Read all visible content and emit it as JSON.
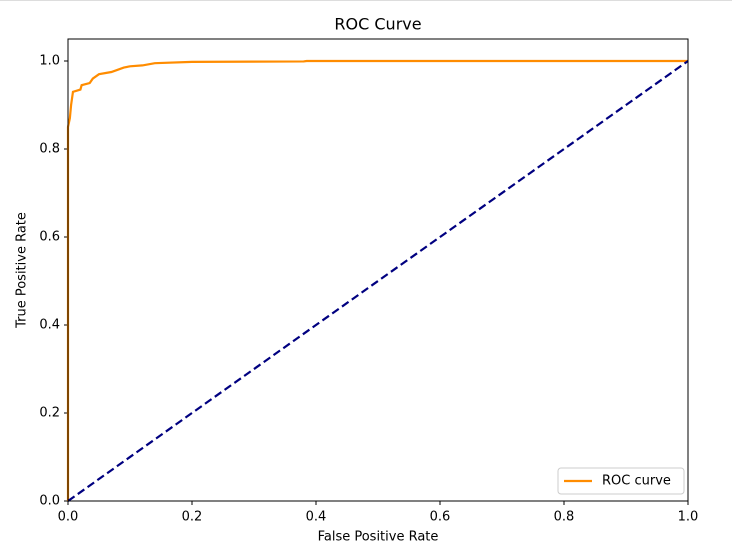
{
  "chart_data": {
    "type": "line",
    "title": "ROC Curve",
    "x_label": "False Positive Rate",
    "y_label": "True Positive Rate",
    "xlim": [
      0,
      1
    ],
    "ylim": [
      0,
      1.05
    ],
    "xticks": [
      {
        "value": 0,
        "label": "0.0"
      },
      0.2,
      0.4,
      0.6,
      0.8,
      {
        "value": 1,
        "label": "1.0"
      }
    ],
    "yticks": [
      {
        "value": 0,
        "label": "0.0"
      },
      0.2,
      0.4,
      0.6,
      0.8,
      {
        "value": 1,
        "label": "1.0"
      }
    ],
    "legend": "lower right",
    "series": [
      {
        "name": "ROC curve",
        "color": "#ff8c00",
        "linestyle": "solid",
        "x": [
          0,
          0,
          0.003,
          0.005,
          0.008,
          0.02,
          0.022,
          0.035,
          0.04,
          0.05,
          0.07,
          0.08,
          0.09,
          0.1,
          0.12,
          0.14,
          0.2,
          0.38,
          0.385,
          1
        ],
        "values": [
          0,
          0.85,
          0.87,
          0.9,
          0.93,
          0.935,
          0.945,
          0.95,
          0.96,
          0.97,
          0.975,
          0.98,
          0.985,
          0.988,
          0.99,
          0.995,
          0.998,
          0.999,
          1,
          1
        ]
      },
      {
        "color": "#000080",
        "linestyle": "dashed",
        "x": [
          0,
          1
        ],
        "values": [
          0,
          1
        ]
      }
    ]
  }
}
